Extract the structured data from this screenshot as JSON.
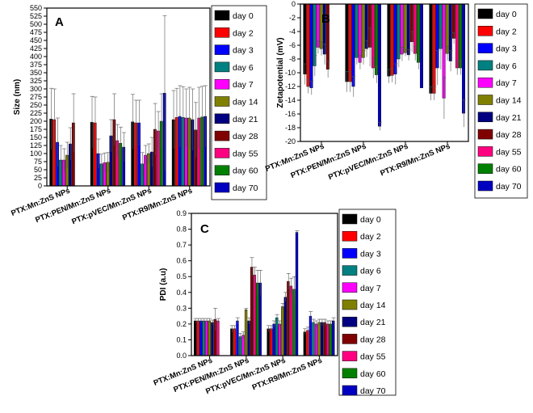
{
  "legend": [
    "day 0",
    "day 2",
    "day 3",
    "day 6",
    "day 7",
    "day 14",
    "day 21",
    "day 28",
    "day 55",
    "day 60",
    "day 70"
  ],
  "series_colors": [
    "#000000",
    "#ff0000",
    "#0000ff",
    "#008080",
    "#ff00ff",
    "#808000",
    "#000080",
    "#800000",
    "#ff0080",
    "#008000",
    "#0000c0"
  ],
  "chart_data": [
    {
      "panel": "A",
      "type": "bar",
      "ylabel": "Size (nm)",
      "xlabel": "",
      "ylim": [
        0,
        550
      ],
      "yticks": [
        "0",
        "25",
        "50",
        "75",
        "100",
        "125",
        "150",
        "175",
        "200",
        "225",
        "250",
        "275",
        "300",
        "325",
        "350",
        "375",
        "400",
        "425",
        "450",
        "475",
        "500",
        "525",
        "550"
      ],
      "categories": [
        "PTX:Mn:ZnS NPs",
        "PTX:PEN/Mn:ZnS NPs",
        "PTX:pVEC/Mn:ZnS NPs",
        "PTX:R9/Mn:ZnS NPs"
      ],
      "series": [
        {
          "name": "day 0",
          "values": [
            207,
            197,
            198,
            205
          ],
          "errors": [
            95,
            80,
            85,
            90
          ]
        },
        {
          "name": "day 2",
          "values": [
            205,
            195,
            195,
            212
          ],
          "errors": [
            95,
            80,
            70,
            90
          ]
        },
        {
          "name": "day 3",
          "values": [
            135,
            100,
            195,
            215
          ],
          "errors": [
            75,
            45,
            70,
            95
          ]
        },
        {
          "name": "day 6",
          "values": [
            80,
            68,
            68,
            212
          ],
          "errors": [
            45,
            30,
            35,
            95
          ]
        },
        {
          "name": "day 7",
          "values": [
            80,
            72,
            95,
            210
          ],
          "errors": [
            35,
            30,
            30,
            90
          ]
        },
        {
          "name": "day 14",
          "values": [
            95,
            73,
            100,
            210
          ],
          "errors": [
            40,
            30,
            30,
            95
          ]
        },
        {
          "name": "day 21",
          "values": [
            130,
            155,
            105,
            205
          ],
          "errors": [
            50,
            50,
            45,
            95
          ]
        },
        {
          "name": "day 28",
          "values": [
            195,
            205,
            175,
            173
          ],
          "errors": [
            90,
            80,
            80,
            85
          ]
        },
        {
          "name": "day 55",
          "values": [
            null,
            140,
            170,
            210
          ],
          "errors": [
            null,
            50,
            60,
            95
          ]
        },
        {
          "name": "day 60",
          "values": [
            null,
            132,
            200,
            213
          ],
          "errors": [
            null,
            50,
            85,
            95
          ]
        },
        {
          "name": "day 70",
          "values": [
            null,
            120,
            287,
            215
          ],
          "errors": [
            null,
            45,
            240,
            95
          ]
        }
      ]
    },
    {
      "panel": "B",
      "type": "bar",
      "ylabel": "Zetapotential (mV)",
      "xlabel": "",
      "ylim": [
        -20,
        0
      ],
      "yticks": [
        "-20",
        "-18",
        "-16",
        "-14",
        "-12",
        "-10",
        "-8",
        "-6",
        "-4",
        "-2",
        "0"
      ],
      "categories": [
        "PTX:Mn:ZnS NPs",
        "PTX:PEN/Mn:ZnS NPs",
        "PTX:pVEC/Mn:ZnS NPs",
        "PTX:R9/Mn:ZnS NPs"
      ],
      "series": [
        {
          "name": "day 0",
          "values": [
            -10.2,
            -11.3,
            -10.5,
            -13
          ],
          "errors": [
            1.5,
            1.5,
            1.0,
            1.0
          ]
        },
        {
          "name": "day 2",
          "values": [
            -12,
            -11.3,
            -10.4,
            -13
          ],
          "errors": [
            1.0,
            1.5,
            1.0,
            1.0
          ]
        },
        {
          "name": "day 3",
          "values": [
            -12.2,
            -12,
            -10.2,
            -9.3
          ],
          "errors": [
            1.0,
            1.5,
            1.5,
            2.5
          ]
        },
        {
          "name": "day 6",
          "values": [
            -9,
            -7.8,
            -8,
            -6.5
          ],
          "errors": [
            1.5,
            1.0,
            1.2,
            3.0
          ]
        },
        {
          "name": "day 7",
          "values": [
            -6.3,
            -8.5,
            -7.3,
            -13.7
          ],
          "errors": [
            0.9,
            1.0,
            1.0,
            3.0
          ]
        },
        {
          "name": "day 14",
          "values": [
            -6.5,
            -7.8,
            -7.1,
            -7.2
          ],
          "errors": [
            1.0,
            1.0,
            0.5,
            1.0
          ]
        },
        {
          "name": "day 21",
          "values": [
            -7.3,
            -6.5,
            -7.4,
            -8.3
          ],
          "errors": [
            1.5,
            1.2,
            0.8,
            1.5
          ]
        },
        {
          "name": "day 28",
          "values": [
            -9.5,
            -6.3,
            -5.5,
            -5
          ],
          "errors": [
            1.2,
            2.8,
            1.5,
            0.8
          ]
        },
        {
          "name": "day 55",
          "values": [
            null,
            -9.3,
            -7.2,
            -9.3
          ],
          "errors": [
            null,
            1.5,
            1.0,
            1.0
          ]
        },
        {
          "name": "day 60",
          "values": [
            null,
            -10.3,
            -8.5,
            -9.3
          ],
          "errors": [
            null,
            1.2,
            1.0,
            1.0
          ]
        },
        {
          "name": "day 70",
          "values": [
            null,
            -17.8,
            -12.2,
            -15.9
          ],
          "errors": [
            null,
            0.6,
            0,
            2.0
          ]
        }
      ]
    },
    {
      "panel": "C",
      "type": "bar",
      "ylabel": "PDI (a.u)",
      "xlabel": "",
      "ylim": [
        0,
        0.9
      ],
      "yticks": [
        "0.0",
        "0.1",
        "0.2",
        "0.3",
        "0.4",
        "0.5",
        "0.6",
        "0.7",
        "0.8",
        "0.9"
      ],
      "categories": [
        "PTX:Mn:ZnS NPs",
        "PTX:PEN/Mn:ZnS NPs",
        "PTX:pVEC/Mn:ZnS NPs",
        "PTX:R9/Mn:ZnS NPs"
      ],
      "series": [
        {
          "name": "day 0",
          "values": [
            0.22,
            0.17,
            0.17,
            0.15
          ],
          "errors": [
            0.015,
            0.02,
            0.02,
            0.02
          ]
        },
        {
          "name": "day 2",
          "values": [
            0.22,
            0.17,
            0.17,
            0.16
          ],
          "errors": [
            0.015,
            0.02,
            0.02,
            0.02
          ]
        },
        {
          "name": "day 3",
          "values": [
            0.22,
            0.22,
            0.2,
            0.25
          ],
          "errors": [
            0.015,
            0.02,
            0.02,
            0.03
          ]
        },
        {
          "name": "day 6",
          "values": [
            0.22,
            0.12,
            0.24,
            0.21
          ],
          "errors": [
            0.015,
            0.02,
            0.02,
            0.02
          ]
        },
        {
          "name": "day 7",
          "values": [
            0.22,
            0.13,
            0.2,
            0.2
          ],
          "errors": [
            0.015,
            0.02,
            0.02,
            0.02
          ]
        },
        {
          "name": "day 14",
          "values": [
            0.22,
            0.29,
            0.31,
            0.21
          ],
          "errors": [
            0.015,
            0.01,
            0.02,
            0.02
          ]
        },
        {
          "name": "day 21",
          "values": [
            0.21,
            0.22,
            0.37,
            0.21
          ],
          "errors": [
            0.015,
            0.02,
            0.03,
            0.02
          ]
        },
        {
          "name": "day 28",
          "values": [
            0.23,
            0.56,
            0.47,
            0.21
          ],
          "errors": [
            0.07,
            0.06,
            0.05,
            0.02
          ]
        },
        {
          "name": "day 55",
          "values": [
            0.22,
            0.51,
            0.44,
            0.2
          ],
          "errors": [
            0.015,
            0.05,
            0.05,
            0.02
          ]
        },
        {
          "name": "day 60",
          "values": [
            null,
            0.46,
            0.42,
            0.2
          ],
          "errors": [
            null,
            0.08,
            0.08,
            0.02
          ]
        },
        {
          "name": "day 70",
          "values": [
            null,
            0.46,
            0.78,
            0.22
          ],
          "errors": [
            null,
            0.08,
            0.01,
            0.02
          ]
        }
      ]
    }
  ]
}
